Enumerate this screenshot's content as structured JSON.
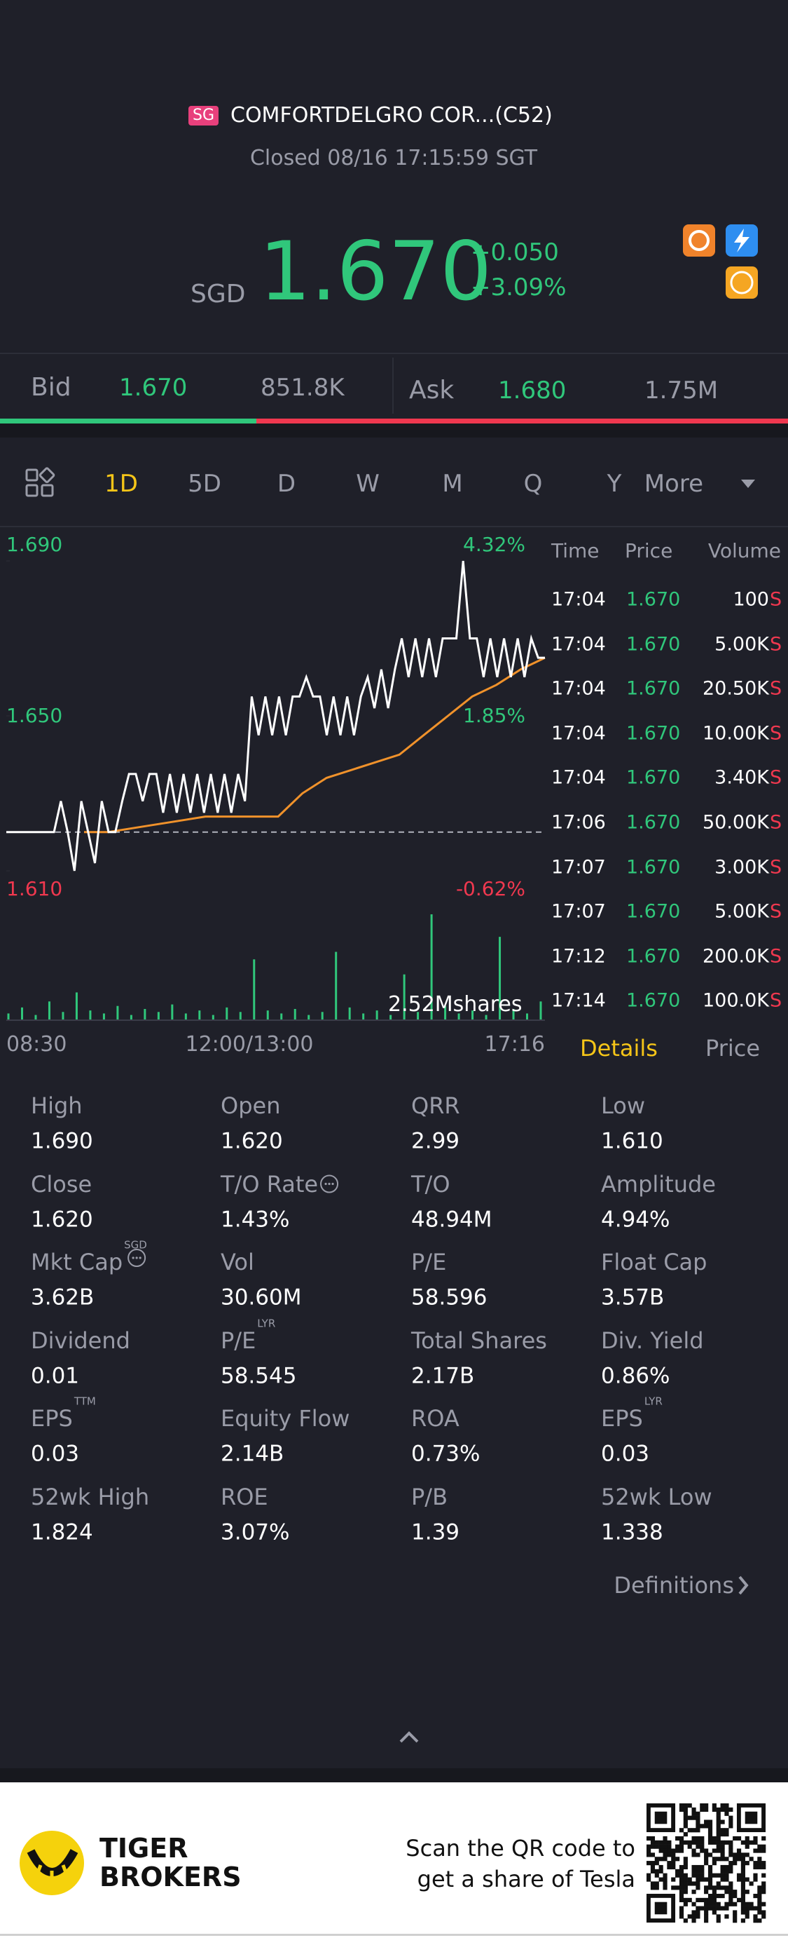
{
  "header": {
    "badge": "SG",
    "title": "COMFORTDELGRO COR...(C52)",
    "status": "Closed 08/16 17:15:59 SGT"
  },
  "quote": {
    "currency": "SGD",
    "price": "1.670",
    "change": "+0.050",
    "change_pct": "+3.09%"
  },
  "book": {
    "bid_label": "Bid",
    "bid": "1.670",
    "bid_size": "851.8K",
    "ask_label": "Ask",
    "ask": "1.680",
    "ask_size": "1.75M"
  },
  "tabs": {
    "items": [
      "1D",
      "5D",
      "D",
      "W",
      "M",
      "Q",
      "Y",
      "More"
    ],
    "active": 0
  },
  "chart": {
    "yticks": [
      {
        "value": 1.69,
        "label": "1.690"
      },
      {
        "value": 1.65,
        "label": "1.650"
      },
      {
        "value": 1.61,
        "label": "1.610"
      }
    ],
    "percent_labels": [
      "4.32%",
      "1.85%",
      "-0.62%"
    ],
    "prev_close": 1.62,
    "price": [
      1.62,
      1.62,
      1.62,
      1.62,
      1.62,
      1.62,
      1.62,
      1.62,
      1.628,
      1.62,
      1.61,
      1.628,
      1.62,
      1.612,
      1.628,
      1.62,
      1.62,
      1.628,
      1.635,
      1.635,
      1.628,
      1.635,
      1.635,
      1.625,
      1.635,
      1.625,
      1.635,
      1.625,
      1.635,
      1.625,
      1.635,
      1.625,
      1.635,
      1.625,
      1.635,
      1.628,
      1.655,
      1.645,
      1.655,
      1.645,
      1.655,
      1.645,
      1.655,
      1.655,
      1.66,
      1.655,
      1.655,
      1.645,
      1.655,
      1.645,
      1.655,
      1.645,
      1.655,
      1.66,
      1.652,
      1.662,
      1.652,
      1.662,
      1.67,
      1.66,
      1.67,
      1.66,
      1.67,
      1.66,
      1.67,
      1.67,
      1.67,
      1.69,
      1.67,
      1.67,
      1.66,
      1.67,
      1.66,
      1.67,
      1.66,
      1.67,
      1.66,
      1.67,
      1.665,
      1.665
    ],
    "price_color": "#ffffff",
    "average": [
      1.62,
      1.62,
      1.621,
      1.622,
      1.623,
      1.624,
      1.624,
      1.624,
      1.624,
      1.63,
      1.634,
      1.636,
      1.638,
      1.64,
      1.645,
      1.65,
      1.655,
      1.658,
      1.662,
      1.665
    ],
    "average_color": "#f0922b",
    "volume": [
      4,
      8,
      3,
      12,
      5,
      18,
      6,
      4,
      9,
      3,
      7,
      5,
      10,
      4,
      6,
      3,
      8,
      5,
      40,
      6,
      4,
      7,
      3,
      5,
      45,
      8,
      4,
      6,
      3,
      30,
      5,
      70,
      9,
      4,
      6,
      3,
      55,
      7,
      4,
      12
    ],
    "volume_color": "#30c77b",
    "volume_total": "2.52Mshares",
    "time_labels": [
      "08:30",
      "12:00/13:00",
      "17:16"
    ]
  },
  "trades": {
    "headers": [
      "Time",
      "Price",
      "Volume"
    ],
    "rows": [
      [
        "17:04",
        "1.670",
        "100"
      ],
      [
        "17:04",
        "1.670",
        "5.00K"
      ],
      [
        "17:04",
        "1.670",
        "20.50K"
      ],
      [
        "17:04",
        "1.670",
        "10.00K"
      ],
      [
        "17:04",
        "1.670",
        "3.40K"
      ],
      [
        "17:06",
        "1.670",
        "50.00K"
      ],
      [
        "17:07",
        "1.670",
        "3.00K"
      ],
      [
        "17:07",
        "1.670",
        "5.00K"
      ],
      [
        "17:12",
        "1.670",
        "200.0K"
      ],
      [
        "17:14",
        "1.670",
        "100.0K"
      ]
    ],
    "side": "S"
  },
  "detail_tabs": [
    "Details",
    "Price"
  ],
  "stats": [
    [
      {
        "label": "High",
        "value": "1.690"
      },
      {
        "label": "Open",
        "value": "1.620"
      },
      {
        "label": "QRR",
        "value": "2.99"
      },
      {
        "label": "Low",
        "value": "1.610"
      }
    ],
    [
      {
        "label": "Close",
        "value": "1.620"
      },
      {
        "label": "T/O Rate",
        "value": "1.43%",
        "info": true
      },
      {
        "label": "T/O",
        "value": "48.94M"
      },
      {
        "label": "Amplitude",
        "value": "4.94%"
      }
    ],
    [
      {
        "label": "Mkt Cap",
        "value": "3.62B",
        "sup": "SGD",
        "info": true
      },
      {
        "label": "Vol",
        "value": "30.60M"
      },
      {
        "label": "P/E",
        "value": "58.596"
      },
      {
        "label": "Float Cap",
        "value": "3.57B"
      }
    ],
    [
      {
        "label": "Dividend",
        "value": "0.01"
      },
      {
        "label": "P/E",
        "value": "58.545",
        "sup": "LYR"
      },
      {
        "label": "Total Shares",
        "value": "2.17B"
      },
      {
        "label": "Div. Yield",
        "value": "0.86%"
      }
    ],
    [
      {
        "label": "EPS",
        "value": "0.03",
        "sup": "TTM"
      },
      {
        "label": "Equity Flow",
        "value": "2.14B"
      },
      {
        "label": "ROA",
        "value": "0.73%"
      },
      {
        "label": "EPS",
        "value": "0.03",
        "sup": "LYR"
      }
    ],
    [
      {
        "label": "52wk High",
        "value": "1.824"
      },
      {
        "label": "ROE",
        "value": "3.07%"
      },
      {
        "label": "P/B",
        "value": "1.39"
      },
      {
        "label": "52wk Low",
        "value": "1.338"
      }
    ]
  ],
  "definitions": "Definitions",
  "footer": {
    "brand": [
      "TIGER",
      "BROKERS"
    ],
    "promo": [
      "Scan the QR code to",
      "get a share of Tesla"
    ]
  }
}
